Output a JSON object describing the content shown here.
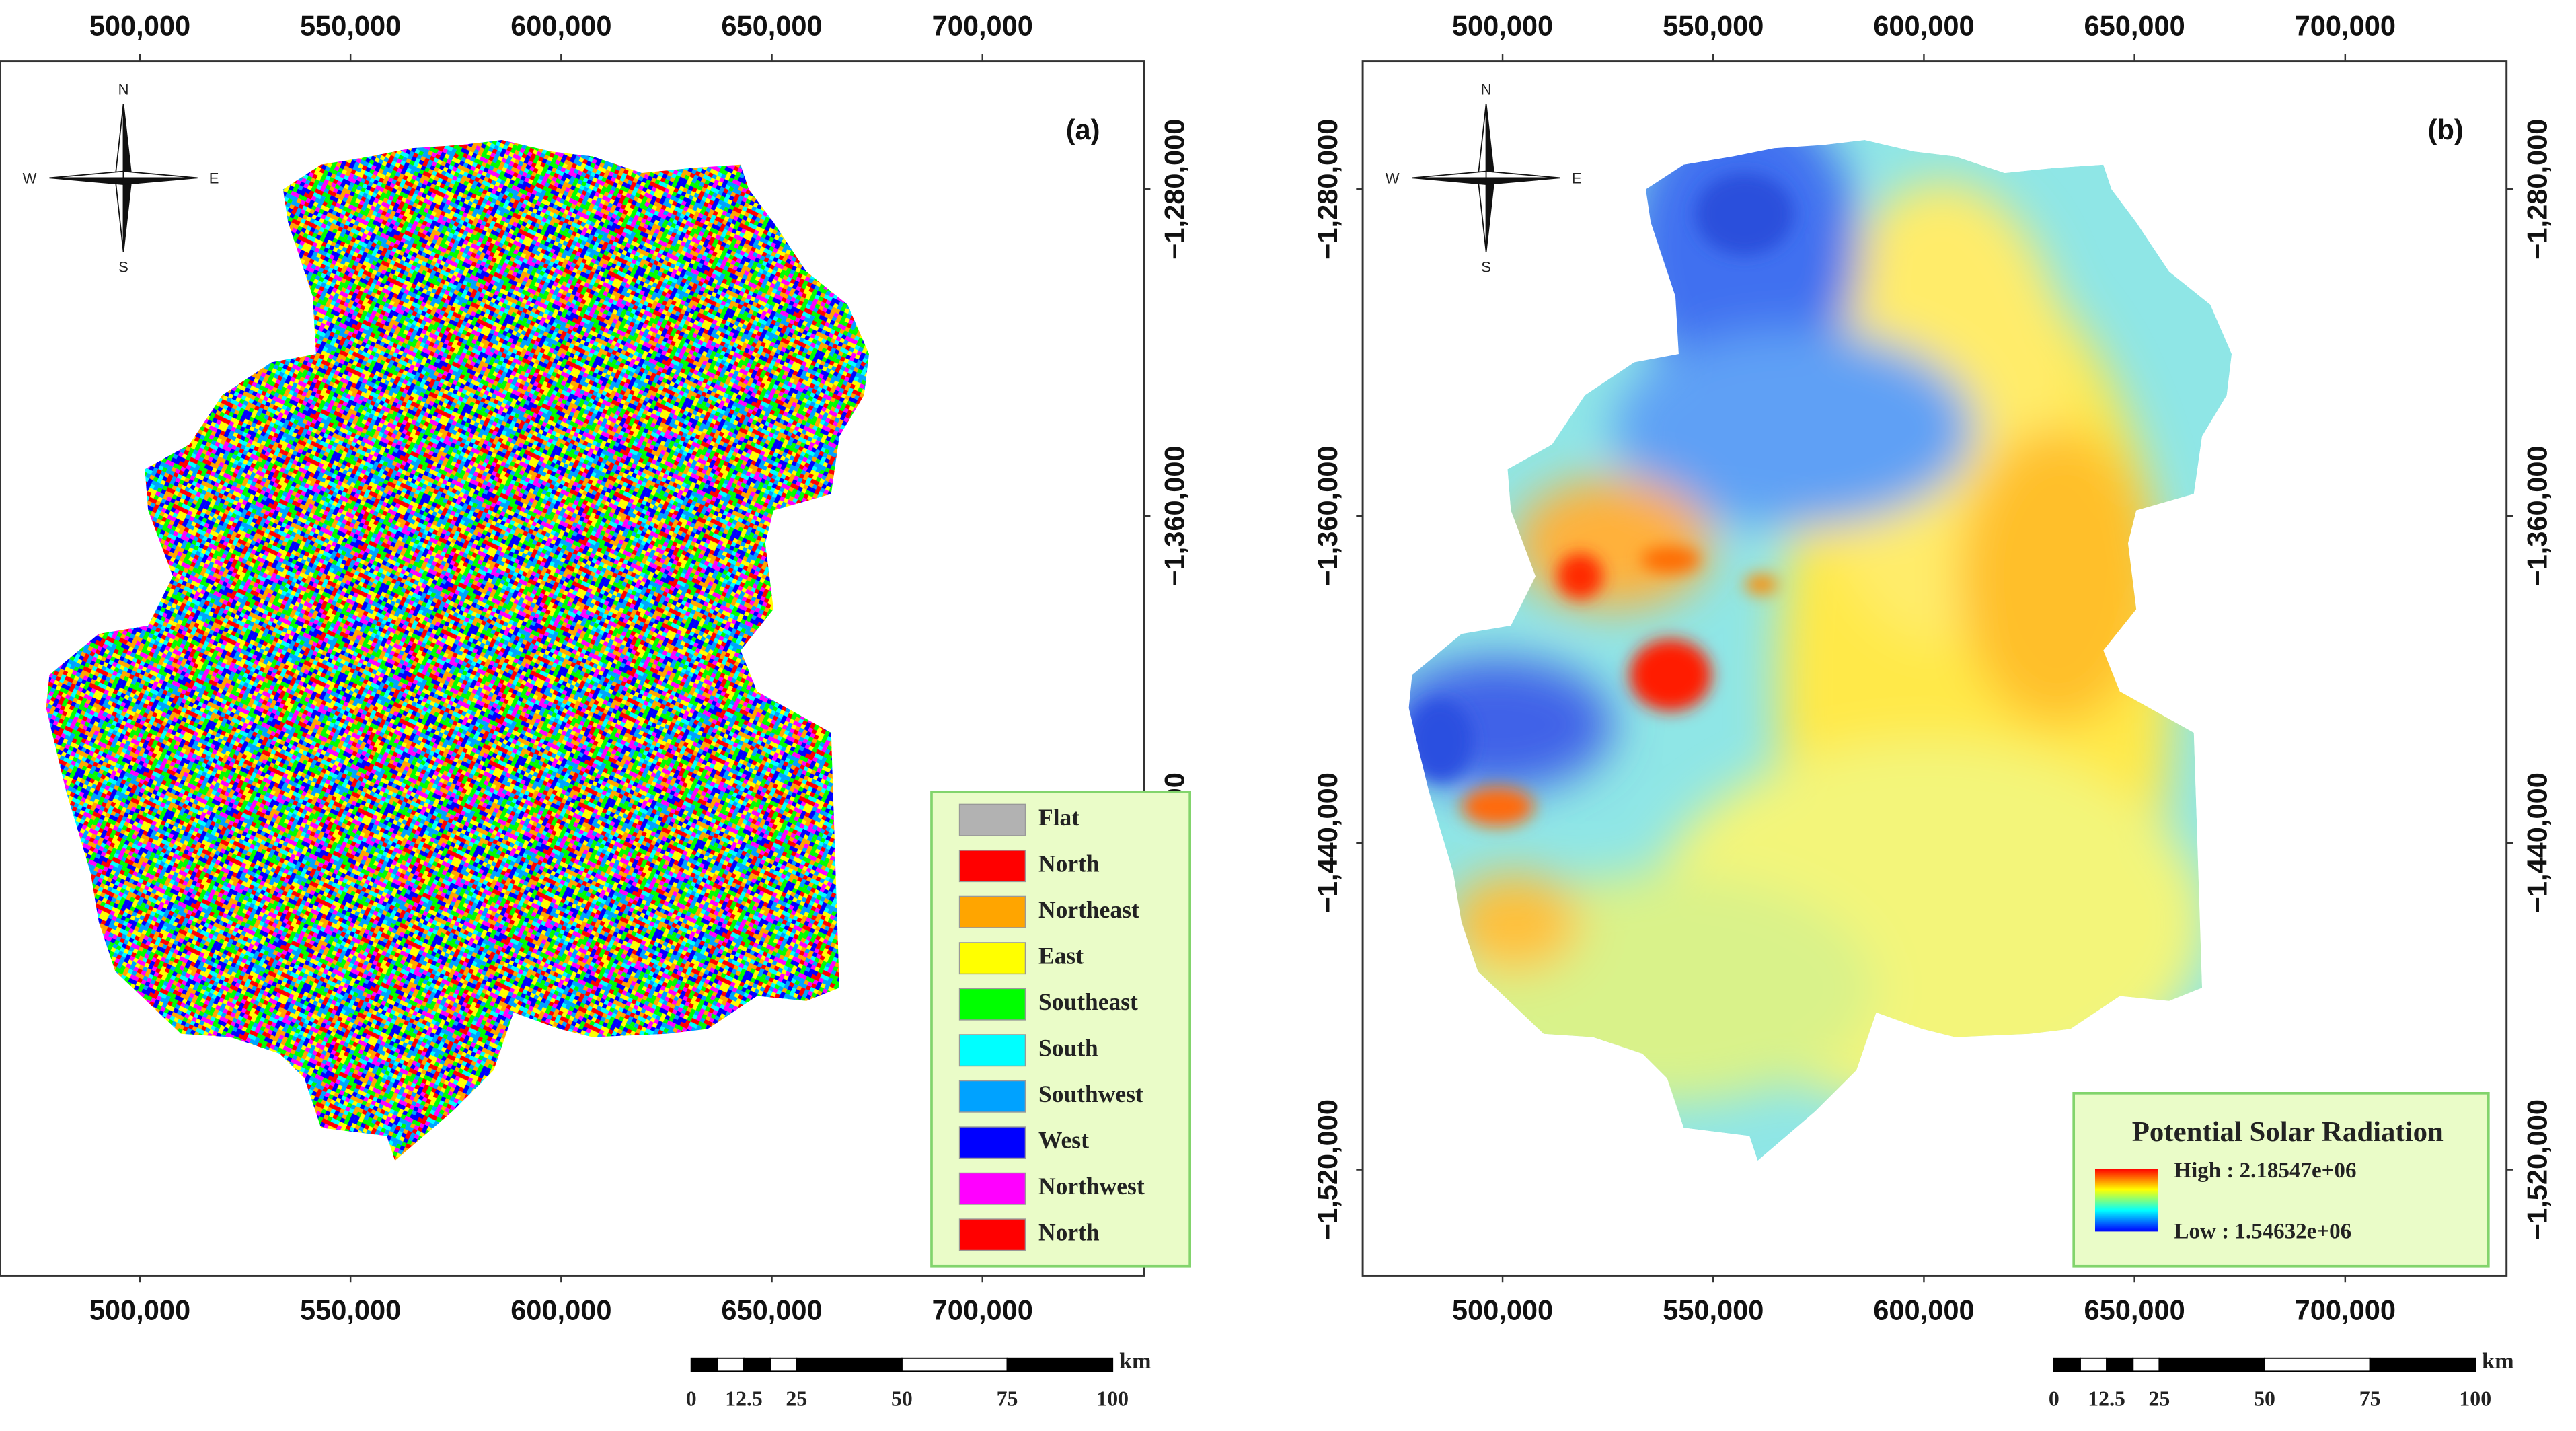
{
  "panels": [
    {
      "label": "(a)",
      "legend": {
        "items": [
          {
            "label": "Flat",
            "color": "#b2b2b2"
          },
          {
            "label": "North",
            "color": "#ff0000"
          },
          {
            "label": "Northeast",
            "color": "#ffa500"
          },
          {
            "label": "East",
            "color": "#ffff00"
          },
          {
            "label": "Southeast",
            "color": "#00ff00"
          },
          {
            "label": "South",
            "color": "#00ffff"
          },
          {
            "label": "Southwest",
            "color": "#00a2ff"
          },
          {
            "label": "West",
            "color": "#0000ff"
          },
          {
            "label": "Northwest",
            "color": "#ff00ff"
          },
          {
            "label": "North",
            "color": "#ff0000"
          }
        ]
      }
    },
    {
      "label": "(b)",
      "legend": {
        "title": "Potential Solar Radiation",
        "high": "High : 2.18547e+06",
        "low": "Low : 1.54632e+06",
        "colors": [
          "#ff0000",
          "#ffff00",
          "#00ffff",
          "#0000ff"
        ]
      }
    }
  ],
  "axes": {
    "xlim": [
      466800,
      738300
    ],
    "ylim": [
      -1546000,
      -1248600
    ],
    "xticks": [
      {
        "value": 500000,
        "label": "500,000"
      },
      {
        "value": 550000,
        "label": "550,000"
      },
      {
        "value": 600000,
        "label": "600,000"
      },
      {
        "value": 650000,
        "label": "650,000"
      },
      {
        "value": 700000,
        "label": "700,000"
      }
    ],
    "yticks": [
      {
        "value": -1280000,
        "label": "−1,280,000"
      },
      {
        "value": -1360000,
        "label": "−1,360,000"
      },
      {
        "value": -1440000,
        "label": "−1,440,000"
      },
      {
        "value": -1520000,
        "label": "−1,520,000"
      }
    ]
  },
  "compass": {
    "n": "N",
    "e": "E",
    "s": "S",
    "w": "W"
  },
  "scale_bar": {
    "ticks": [
      0,
      12.5,
      25,
      50,
      75,
      100
    ],
    "unit": "km"
  }
}
